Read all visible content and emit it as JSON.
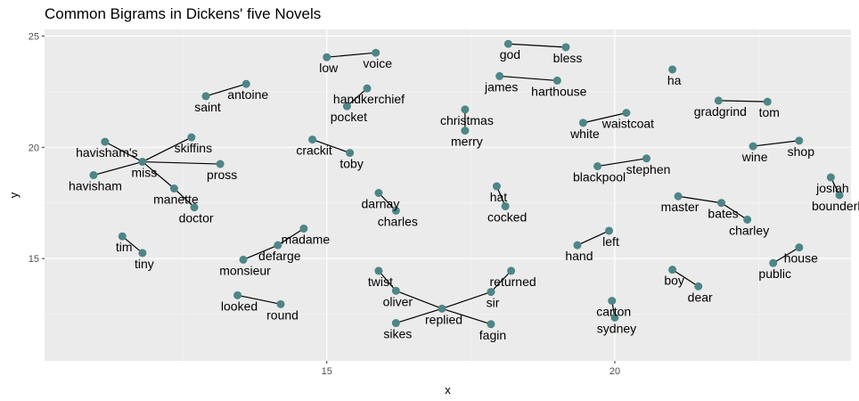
{
  "chart_data": {
    "type": "network",
    "title": "Common Bigrams in Dickens' five Novels",
    "xlabel": "x",
    "ylabel": "y",
    "xlim": [
      10.1,
      24.1
    ],
    "ylim": [
      10.4,
      25.3
    ],
    "x_ticks": [
      15,
      20
    ],
    "y_ticks": [
      15,
      20,
      25
    ],
    "grid": true,
    "background": "#ebebeb",
    "node_color": "#4e8587",
    "edge_color": "#000000",
    "nodes": [
      {
        "word": "god",
        "x": 18.15,
        "y": 24.65
      },
      {
        "word": "bless",
        "x": 19.15,
        "y": 24.5
      },
      {
        "word": "low",
        "x": 15.0,
        "y": 24.05
      },
      {
        "word": "voice",
        "x": 15.85,
        "y": 24.25
      },
      {
        "word": "james",
        "x": 18.0,
        "y": 23.2
      },
      {
        "word": "harthouse",
        "x": 19.0,
        "y": 23.0
      },
      {
        "word": "ha",
        "x": 21.0,
        "y": 23.5
      },
      {
        "word": "antoine",
        "x": 13.6,
        "y": 22.85
      },
      {
        "word": "saint",
        "x": 12.9,
        "y": 22.3
      },
      {
        "word": "handkerchief",
        "x": 15.7,
        "y": 22.65
      },
      {
        "word": "pocket",
        "x": 15.35,
        "y": 21.85
      },
      {
        "word": "gradgrind",
        "x": 21.8,
        "y": 22.1
      },
      {
        "word": "tom",
        "x": 22.65,
        "y": 22.05
      },
      {
        "word": "christmas",
        "x": 17.4,
        "y": 21.7
      },
      {
        "word": "merry",
        "x": 17.4,
        "y": 20.75
      },
      {
        "word": "waistcoat",
        "x": 20.2,
        "y": 21.55
      },
      {
        "word": "white",
        "x": 19.45,
        "y": 21.1
      },
      {
        "word": "skiffins",
        "x": 12.65,
        "y": 20.45
      },
      {
        "word": "havisham's",
        "x": 11.15,
        "y": 20.25
      },
      {
        "word": "crackit",
        "x": 14.75,
        "y": 20.35
      },
      {
        "word": "toby",
        "x": 15.4,
        "y": 19.75
      },
      {
        "word": "shop",
        "x": 23.2,
        "y": 20.3
      },
      {
        "word": "wine",
        "x": 22.4,
        "y": 20.05
      },
      {
        "word": "miss",
        "x": 11.8,
        "y": 19.35
      },
      {
        "word": "pross",
        "x": 13.15,
        "y": 19.25
      },
      {
        "word": "stephen",
        "x": 20.55,
        "y": 19.5
      },
      {
        "word": "blackpool",
        "x": 19.7,
        "y": 19.15
      },
      {
        "word": "havisham",
        "x": 10.95,
        "y": 18.75
      },
      {
        "word": "josiah",
        "x": 23.75,
        "y": 18.65
      },
      {
        "word": "bounderby",
        "x": 23.9,
        "y": 17.85
      },
      {
        "word": "manette",
        "x": 12.35,
        "y": 18.15
      },
      {
        "word": "hat",
        "x": 17.95,
        "y": 18.25
      },
      {
        "word": "cocked",
        "x": 18.1,
        "y": 17.35
      },
      {
        "word": "darnay",
        "x": 15.9,
        "y": 17.95
      },
      {
        "word": "charles",
        "x": 16.2,
        "y": 17.15
      },
      {
        "word": "doctor",
        "x": 12.7,
        "y": 17.3
      },
      {
        "word": "master",
        "x": 21.1,
        "y": 17.8
      },
      {
        "word": "bates",
        "x": 21.85,
        "y": 17.5
      },
      {
        "word": "charley",
        "x": 22.3,
        "y": 16.75
      },
      {
        "word": "madame",
        "x": 14.6,
        "y": 16.35
      },
      {
        "word": "defarge",
        "x": 14.15,
        "y": 15.6
      },
      {
        "word": "monsieur",
        "x": 13.55,
        "y": 14.95
      },
      {
        "word": "left",
        "x": 19.9,
        "y": 16.25
      },
      {
        "word": "hand",
        "x": 19.35,
        "y": 15.6
      },
      {
        "word": "tim",
        "x": 11.45,
        "y": 16.0
      },
      {
        "word": "tiny",
        "x": 11.8,
        "y": 15.25
      },
      {
        "word": "house",
        "x": 23.2,
        "y": 15.5
      },
      {
        "word": "public",
        "x": 22.75,
        "y": 14.8
      },
      {
        "word": "twist",
        "x": 15.9,
        "y": 14.45
      },
      {
        "word": "oliver",
        "x": 16.2,
        "y": 13.55
      },
      {
        "word": "returned",
        "x": 18.2,
        "y": 14.45
      },
      {
        "word": "sir",
        "x": 17.85,
        "y": 13.5
      },
      {
        "word": "boy",
        "x": 21.0,
        "y": 14.5
      },
      {
        "word": "dear",
        "x": 21.45,
        "y": 13.75
      },
      {
        "word": "looked",
        "x": 13.45,
        "y": 13.35
      },
      {
        "word": "round",
        "x": 14.2,
        "y": 12.95
      },
      {
        "word": "carton",
        "x": 19.95,
        "y": 13.1
      },
      {
        "word": "sydney",
        "x": 20.0,
        "y": 12.35
      },
      {
        "word": "replied",
        "x": 17.0,
        "y": 12.75
      },
      {
        "word": "sikes",
        "x": 16.2,
        "y": 12.1
      },
      {
        "word": "fagin",
        "x": 17.85,
        "y": 12.05
      }
    ],
    "edges": [
      [
        "god",
        "bless"
      ],
      [
        "low",
        "voice"
      ],
      [
        "james",
        "harthouse"
      ],
      [
        "saint",
        "antoine"
      ],
      [
        "pocket",
        "handkerchief"
      ],
      [
        "gradgrind",
        "tom"
      ],
      [
        "christmas",
        "merry"
      ],
      [
        "white",
        "waistcoat"
      ],
      [
        "miss",
        "skiffins"
      ],
      [
        "miss",
        "havisham's"
      ],
      [
        "miss",
        "pross"
      ],
      [
        "miss",
        "havisham"
      ],
      [
        "miss",
        "manette"
      ],
      [
        "manette",
        "doctor"
      ],
      [
        "crackit",
        "toby"
      ],
      [
        "wine",
        "shop"
      ],
      [
        "blackpool",
        "stephen"
      ],
      [
        "josiah",
        "bounderby"
      ],
      [
        "hat",
        "cocked"
      ],
      [
        "darnay",
        "charles"
      ],
      [
        "master",
        "bates"
      ],
      [
        "bates",
        "charley"
      ],
      [
        "monsieur",
        "defarge"
      ],
      [
        "defarge",
        "madame"
      ],
      [
        "hand",
        "left"
      ],
      [
        "tim",
        "tiny"
      ],
      [
        "public",
        "house"
      ],
      [
        "twist",
        "oliver"
      ],
      [
        "oliver",
        "replied"
      ],
      [
        "returned",
        "sir"
      ],
      [
        "sir",
        "replied"
      ],
      [
        "replied",
        "sikes"
      ],
      [
        "replied",
        "fagin"
      ],
      [
        "boy",
        "dear"
      ],
      [
        "looked",
        "round"
      ],
      [
        "carton",
        "sydney"
      ]
    ]
  }
}
